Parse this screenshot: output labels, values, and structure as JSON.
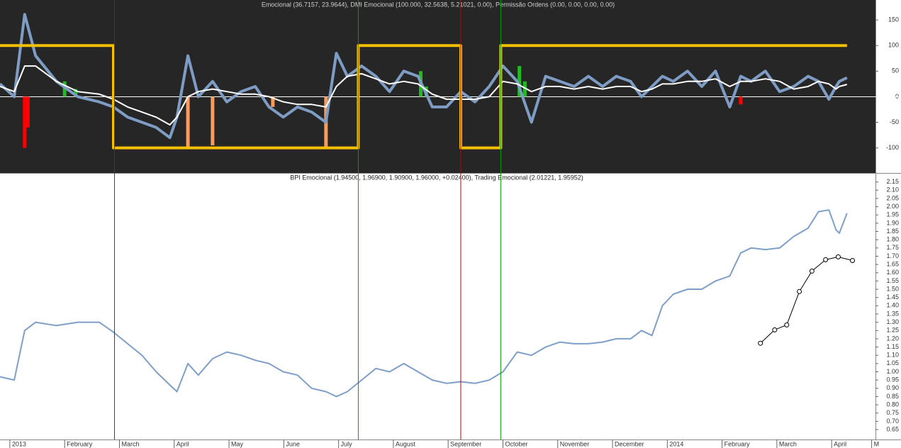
{
  "chart_data": [
    {
      "type": "line",
      "title": "Emocional (36.7157, 23.9644), DMI Emocional (100.000, 32.5638, 5.21021, 0.00), Permissão Ordens (0.00, 0.00, 0.00, 0.00)",
      "xlim": [
        -0.18,
        15.8
      ],
      "ylim": [
        -149,
        189
      ],
      "yticks": [
        150,
        100,
        50,
        0,
        -50,
        -100
      ],
      "x": [
        -0.18,
        0.08,
        0.27,
        0.47,
        0.85,
        1.24,
        1.63,
        1.89,
        2.15,
        2.41,
        2.67,
        2.92,
        3.05,
        3.25,
        3.44,
        3.7,
        3.96,
        4.22,
        4.48,
        4.73,
        4.99,
        5.25,
        5.51,
        5.77,
        5.96,
        6.16,
        6.42,
        6.68,
        6.93,
        7.19,
        7.45,
        7.71,
        7.97,
        8.23,
        8.49,
        8.75,
        9.0,
        9.26,
        9.52,
        9.78,
        10.04,
        10.3,
        10.56,
        10.82,
        11.07,
        11.33,
        11.53,
        11.72,
        11.91,
        12.11,
        12.37,
        12.63,
        12.88,
        13.14,
        13.34,
        13.53,
        13.79,
        14.05,
        14.31,
        14.57,
        14.76,
        14.95,
        15.08,
        15.14,
        15.28
      ],
      "series": [
        {
          "name": "Emocional",
          "color": "#7e9cc4",
          "width": 4,
          "values": [
            25,
            0,
            161,
            80,
            30,
            0,
            -10,
            -20,
            -40,
            -50,
            -60,
            -80,
            -40,
            80,
            0,
            30,
            -10,
            10,
            20,
            -20,
            -40,
            -20,
            -30,
            -50,
            85,
            40,
            60,
            40,
            10,
            50,
            40,
            -20,
            -20,
            10,
            -10,
            20,
            60,
            30,
            -50,
            40,
            30,
            20,
            40,
            20,
            40,
            30,
            0,
            20,
            40,
            30,
            50,
            20,
            50,
            -20,
            40,
            30,
            50,
            10,
            20,
            40,
            30,
            -5,
            20,
            30,
            37
          ]
        },
        {
          "name": "DMI Emocional",
          "color": "#ffffff",
          "width": 2,
          "values": [
            20,
            10,
            60,
            60,
            30,
            10,
            5,
            -5,
            -20,
            -30,
            -40,
            -55,
            -40,
            0,
            10,
            15,
            10,
            5,
            5,
            0,
            -10,
            -15,
            -15,
            -20,
            20,
            40,
            45,
            35,
            25,
            30,
            25,
            5,
            -5,
            -5,
            -5,
            0,
            30,
            25,
            10,
            20,
            20,
            15,
            20,
            15,
            20,
            20,
            10,
            15,
            25,
            25,
            30,
            30,
            35,
            20,
            30,
            30,
            35,
            30,
            15,
            20,
            30,
            25,
            15,
            20,
            24
          ]
        },
        {
          "name": "Permissão Ordens",
          "color": "#f5c000",
          "width": 4,
          "x": [
            -0.18,
            1.89,
            1.89,
            6.36,
            6.36,
            8.23,
            8.23,
            8.96,
            8.96,
            15.28
          ],
          "values": [
            100,
            100,
            -100,
            -100,
            100,
            100,
            -100,
            -100,
            100,
            100
          ]
        }
      ],
      "bars": {
        "x": [
          0.27,
          0.33,
          1.0,
          1.2,
          3.25,
          3.7,
          4.8,
          5.77,
          7.5,
          7.6,
          9.3,
          9.4,
          13.34
        ],
        "values": [
          -100,
          -60,
          30,
          15,
          -100,
          -95,
          -20,
          -100,
          50,
          20,
          60,
          30,
          -15
        ],
        "colors": [
          "#ff0000",
          "#ff0000",
          "#22bb22",
          "#22bb22",
          "#ff9a5a",
          "#ff9a5a",
          "#ff9a5a",
          "#ff9a5a",
          "#22bb22",
          "#22bb22",
          "#22bb22",
          "#22bb22",
          "#ff0000"
        ]
      }
    },
    {
      "type": "line",
      "title": "BPI Emocional (1.94500, 1.96900, 1.90900, 1.96000, +0.02400), Trading Emocional (2.01221, 1.95952)",
      "xlim": [
        -0.18,
        15.8
      ],
      "ylim": [
        0.59,
        2.2
      ],
      "xticks": [
        {
          "value": 0,
          "label": "2013"
        },
        {
          "value": 1,
          "label": "February"
        },
        {
          "value": 2,
          "label": "March"
        },
        {
          "value": 3,
          "label": "April"
        },
        {
          "value": 4,
          "label": "May"
        },
        {
          "value": 5,
          "label": "June"
        },
        {
          "value": 6,
          "label": "July"
        },
        {
          "value": 7,
          "label": "August"
        },
        {
          "value": 8,
          "label": "September"
        },
        {
          "value": 9,
          "label": "October"
        },
        {
          "value": 10,
          "label": "November"
        },
        {
          "value": 11,
          "label": "December"
        },
        {
          "value": 12,
          "label": "2014"
        },
        {
          "value": 13,
          "label": "February"
        },
        {
          "value": 14,
          "label": "March"
        },
        {
          "value": 15,
          "label": "April"
        },
        {
          "value": 15.73,
          "label": "M"
        }
      ],
      "yticks": [
        0.65,
        {
          "value": 0.7,
          "label": "0.70"
        },
        0.75,
        {
          "value": 0.8,
          "label": "0.80"
        },
        0.85,
        {
          "value": 0.9,
          "label": "0.90"
        },
        0.95,
        {
          "value": 1,
          "label": "1.00"
        },
        1.05,
        {
          "value": 1.1,
          "label": "1.10"
        },
        1.15,
        {
          "value": 1.2,
          "label": "1.20"
        },
        1.25,
        {
          "value": 1.3,
          "label": "1.30"
        },
        1.35,
        {
          "value": 1.4,
          "label": "1.40"
        },
        1.45,
        {
          "value": 1.5,
          "label": "1.50"
        },
        1.55,
        {
          "value": 1.6,
          "label": "1.60"
        },
        1.65,
        {
          "value": 1.7,
          "label": "1.70"
        },
        1.75,
        {
          "value": 1.8,
          "label": "1.80"
        },
        1.85,
        {
          "value": 1.9,
          "label": "1.90"
        },
        1.95,
        {
          "value": 2,
          "label": "2.00"
        },
        2.05,
        {
          "value": 2.1,
          "label": "2.10"
        },
        2.15
      ],
      "x": [
        -0.18,
        0.08,
        0.27,
        0.47,
        0.85,
        1.24,
        1.63,
        1.89,
        2.15,
        2.41,
        2.67,
        2.92,
        3.05,
        3.25,
        3.44,
        3.7,
        3.96,
        4.22,
        4.48,
        4.73,
        4.99,
        5.25,
        5.51,
        5.77,
        5.96,
        6.16,
        6.42,
        6.68,
        6.93,
        7.19,
        7.45,
        7.71,
        7.97,
        8.23,
        8.49,
        8.75,
        9.0,
        9.26,
        9.52,
        9.78,
        10.04,
        10.3,
        10.56,
        10.82,
        11.07,
        11.33,
        11.53,
        11.72,
        11.91,
        12.11,
        12.37,
        12.63,
        12.88,
        13.14,
        13.34,
        13.53,
        13.79,
        14.05,
        14.31,
        14.57,
        14.76,
        14.95,
        15.08,
        15.14,
        15.28
      ],
      "series": [
        {
          "name": "BPI Emocional",
          "color": "#7f9fc8",
          "width": 2,
          "values": [
            0.97,
            0.95,
            1.25,
            1.3,
            1.28,
            1.3,
            1.3,
            1.24,
            1.17,
            1.1,
            1.0,
            0.92,
            0.88,
            1.05,
            0.98,
            1.08,
            1.12,
            1.1,
            1.07,
            1.05,
            1.0,
            0.98,
            0.9,
            0.88,
            0.85,
            0.88,
            0.95,
            1.02,
            1.0,
            1.05,
            1.0,
            0.95,
            0.93,
            0.94,
            0.93,
            0.95,
            1.0,
            1.12,
            1.1,
            1.15,
            1.18,
            1.17,
            1.17,
            1.18,
            1.2,
            1.2,
            1.25,
            1.22,
            1.4,
            1.47,
            1.5,
            1.5,
            1.55,
            1.58,
            1.72,
            1.75,
            1.74,
            1.75,
            1.82,
            1.87,
            1.97,
            1.98,
            1.86,
            1.84,
            1.96
          ]
        },
        {
          "name": "Trading Emocional",
          "color": "#000000",
          "width": 1,
          "markers": true,
          "x": [
            13.7,
            13.96,
            14.18,
            14.41,
            14.64,
            14.89,
            15.12,
            15.38
          ],
          "values": [
            1.173,
            1.254,
            1.284,
            1.486,
            1.61,
            1.679,
            1.696,
            1.674
          ]
        }
      ],
      "vlines": [
        {
          "x": 1.91,
          "color": "#cc0000"
        },
        {
          "x": 6.36,
          "color": "#00a000"
        },
        {
          "x": 8.23,
          "color": "#cc0000"
        },
        {
          "x": 8.96,
          "color": "#00a000"
        }
      ]
    }
  ]
}
